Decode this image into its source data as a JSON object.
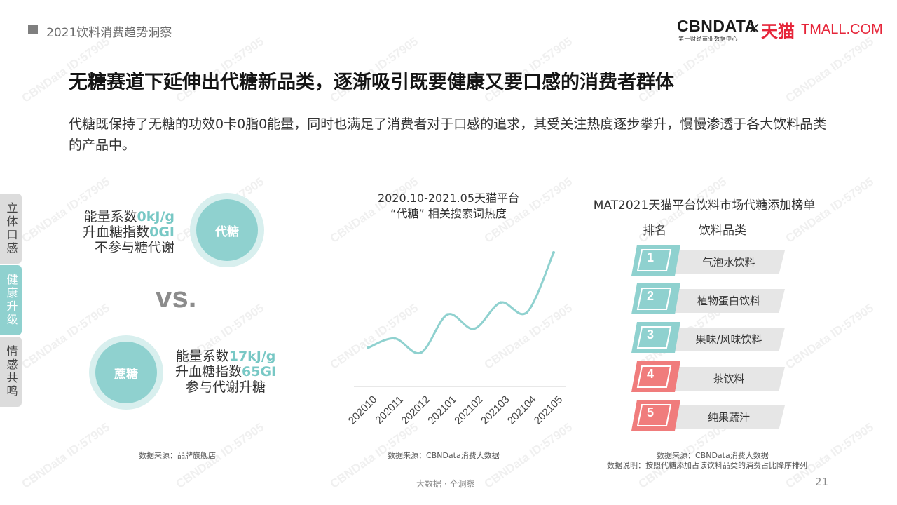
{
  "header": {
    "section_title": "2021饮料消费趋势洞察"
  },
  "logo": {
    "cbn": "CBNDATA",
    "cbn_sub": "第一财经商业数据中心",
    "times": "×",
    "tmall_cn": "天猫",
    "tmall_en": "TMALL.COM"
  },
  "main_title": "无糖赛道下延伸出代糖新品类，逐渐吸引既要健康又要口感的消费者群体",
  "description": "代糖既保持了无糖的功效0卡0脂0能量，同时也满足了消费者对于口感的追求，其受关注热度逐步攀升，慢慢渗透于各大饮料品类的产品中。",
  "side_tabs": [
    {
      "label": "立体口感",
      "active": false
    },
    {
      "label": "健康升级",
      "active": true
    },
    {
      "label": "情感共鸣",
      "active": false
    }
  ],
  "comparison": {
    "substitute": {
      "name": "代糖",
      "energy_label": "能量系数",
      "energy_value": "0kJ/g",
      "gi_label": "升血糖指数",
      "gi_value": "0GI",
      "metabolism": "不参与糖代谢"
    },
    "vs": "vs.",
    "sucrose": {
      "name": "蔗糖",
      "energy_label": "能量系数",
      "energy_value": "17kJ/g",
      "gi_label": "升血糖指数",
      "gi_value": "65GI",
      "metabolism": "参与代谢升糖"
    },
    "source": "数据来源：品牌旗舰店"
  },
  "trend": {
    "title_line1": "2020.10-2021.05天猫平台",
    "title_line2": "“代糖” 相关搜索词热度",
    "source": "数据来源：CBNData消费大数据"
  },
  "chart_data": {
    "type": "line",
    "title": "2020.10-2021.05天猫平台 “代糖” 相关搜索词热度",
    "categories": [
      "202010",
      "202011",
      "202012",
      "202101",
      "202102",
      "202103",
      "202104",
      "202105"
    ],
    "series": [
      {
        "values": [
          0.2,
          0.28,
          0.16,
          0.48,
          0.36,
          0.58,
          0.5,
          1.0
        ]
      }
    ],
    "y_axis_shown": false,
    "line_color": "#8fd1cf",
    "grid": false
  },
  "ranking": {
    "title": "MAT2021天猫平台饮料市场代糖添加榜单",
    "col_rank": "排名",
    "col_category": "饮料品类",
    "items": [
      {
        "rank": "1",
        "name": "气泡水饮料",
        "color": "#8fd1cf"
      },
      {
        "rank": "2",
        "name": "植物蛋白饮料",
        "color": "#8fd1cf"
      },
      {
        "rank": "3",
        "name": "果味/风味饮料",
        "color": "#8fd1cf"
      },
      {
        "rank": "4",
        "name": "茶饮料",
        "color": "#f07c7c"
      },
      {
        "rank": "5",
        "name": "纯果蔬汁",
        "color": "#f07c7c"
      }
    ],
    "source_line1": "数据来源：CBNData消费大数据",
    "source_line2": "数据说明：按照代糖添加占该饮料品类的消费占比降序排列"
  },
  "footer": {
    "text": "大数据 · 全洞察",
    "page": "21"
  },
  "watermark": "CBNData ID:57905"
}
